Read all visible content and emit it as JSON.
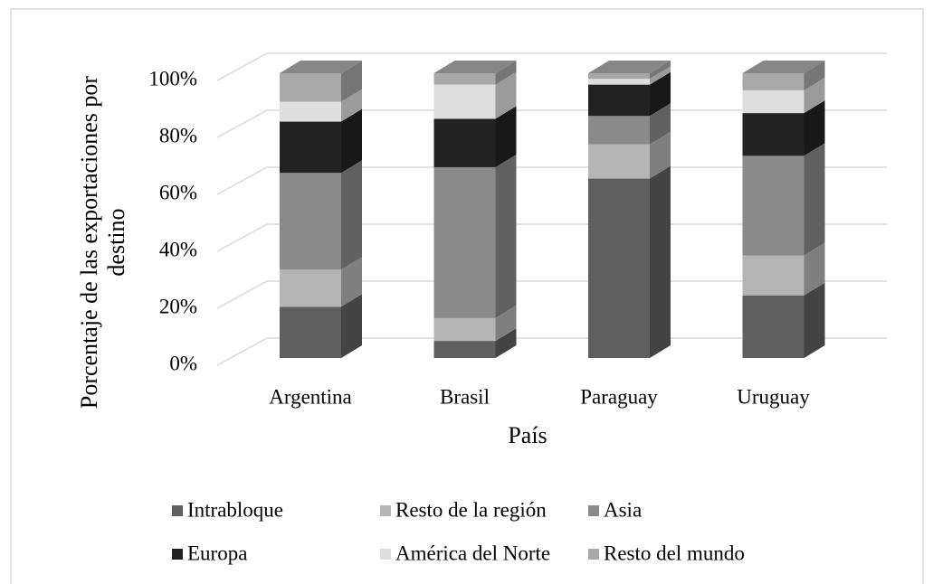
{
  "chart_data": {
    "type": "bar3d_stacked",
    "categories": [
      "Argentina",
      "Brasil",
      "Paraguay",
      "Uruguay"
    ],
    "series": [
      {
        "name": "Intrabloque",
        "color": "#5f5f5f",
        "values": [
          18,
          6,
          63,
          22
        ]
      },
      {
        "name": "Resto de la región",
        "color": "#b5b5b5",
        "values": [
          13,
          8,
          12,
          14
        ]
      },
      {
        "name": "Asia",
        "color": "#8a8a8a",
        "values": [
          34,
          53,
          10,
          35
        ]
      },
      {
        "name": "Europa",
        "color": "#222222",
        "values": [
          18,
          17,
          11,
          15
        ]
      },
      {
        "name": "América del Norte",
        "color": "#dedede",
        "values": [
          7,
          12,
          2,
          8
        ]
      },
      {
        "name": "Resto del mundo",
        "color": "#a8a8a8",
        "values": [
          10,
          4,
          2,
          6
        ]
      }
    ],
    "x_label": "País",
    "y_label": "Porcentaje de las exportaciones por destino",
    "ylim": [
      0,
      100
    ],
    "yticks": [
      {
        "value": 0,
        "label": "0%"
      },
      {
        "value": 20,
        "label": "20%"
      },
      {
        "value": 40,
        "label": "40%"
      },
      {
        "value": 60,
        "label": "60%"
      },
      {
        "value": 80,
        "label": "80%"
      },
      {
        "value": 100,
        "label": "100%"
      }
    ],
    "grid": true,
    "legend": "bottom"
  }
}
